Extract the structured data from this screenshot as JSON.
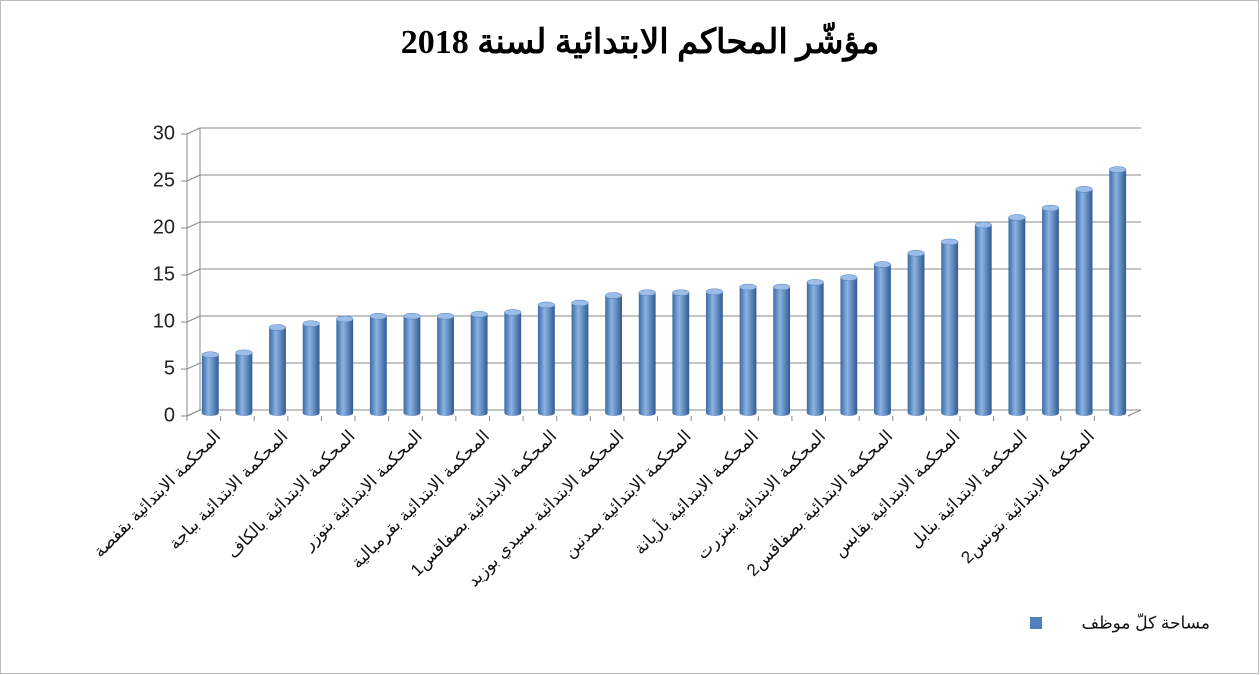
{
  "chart_data": {
    "type": "bar",
    "title": "مؤشّر المحاكم الابتدائية لسنة 2018",
    "categories": [
      "المحكمة الابتدائية بقفصة",
      null,
      "المحكمة الابتدائية بباجة",
      null,
      "المحكمة الابتدائية بالكاف",
      null,
      "المحكمة الابتدائية بتوزر",
      null,
      "المحكمة الابتدائية بقرمبالية",
      null,
      "المحكمة الابتدائية بصفاقس1",
      null,
      "المحكمة الابتدائية بسيدي بوزيد",
      null,
      "المحكمة الابتدائية بمدنين",
      null,
      "المحكمة الابتدائية بأريانة",
      null,
      "المحكمة الابتدائية ببنزرت",
      null,
      "المحكمة الابتدائية بصفاقس2",
      null,
      "المحكمة الابتدائية بقابس",
      null,
      "المحكمة الابتدائية بنابل",
      null,
      "المحكمة الابتدائية بتونس2",
      null
    ],
    "series": [
      {
        "name": "مساحة كلّ موظف",
        "color": "#4f81bd",
        "values": [
          6.2,
          6.4,
          9.1,
          9.5,
          10.0,
          10.3,
          10.3,
          10.3,
          10.5,
          10.7,
          11.5,
          11.7,
          12.5,
          12.8,
          12.8,
          12.9,
          13.4,
          13.4,
          13.9,
          14.4,
          15.8,
          17.0,
          18.2,
          20.0,
          20.8,
          21.8,
          23.8,
          25.9
        ]
      }
    ],
    "ylim": [
      0,
      30
    ],
    "yticks": [
      0,
      5,
      10,
      15,
      20,
      25,
      30
    ],
    "grid": true,
    "legend": "bottom-right"
  }
}
